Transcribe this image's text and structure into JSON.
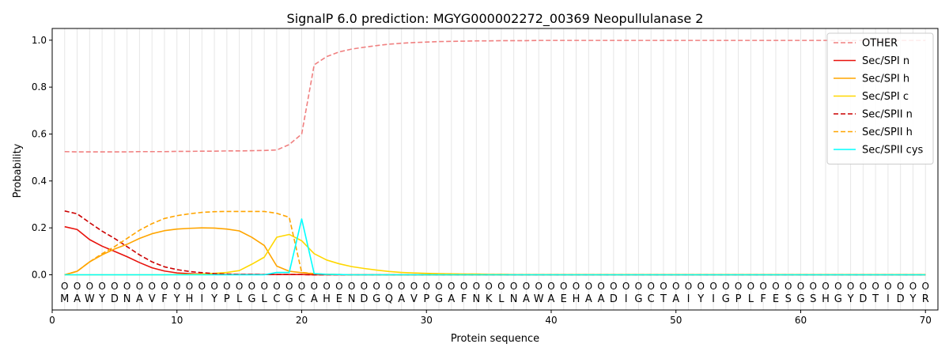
{
  "chart_data": {
    "type": "line",
    "title": "SignalP 6.0 prediction: MGYG000002272_00369 Neopullulanase 2",
    "xlabel": "Protein sequence",
    "ylabel": "Probability",
    "xlim": [
      0,
      71
    ],
    "ylim": [
      -0.15,
      1.05
    ],
    "grid": "vertical lines at each residue",
    "legend_position": "top-right",
    "x_ticks": [
      0,
      10,
      20,
      30,
      40,
      50,
      60,
      70
    ],
    "y_ticks": [
      0.0,
      0.2,
      0.4,
      0.6,
      0.8,
      1.0
    ],
    "x_tick_labels": [
      "0",
      "10",
      "20",
      "30",
      "40",
      "50",
      "60",
      "70"
    ],
    "y_tick_labels": [
      "0.0",
      "0.2",
      "0.4",
      "0.6",
      "0.8",
      "1.0"
    ],
    "sequence": [
      "M",
      "A",
      "W",
      "Y",
      "D",
      "N",
      "A",
      "V",
      "F",
      "Y",
      "H",
      "I",
      "Y",
      "P",
      "L",
      "G",
      "L",
      "C",
      "G",
      "C",
      "A",
      "H",
      "E",
      "N",
      "D",
      "G",
      "Q",
      "A",
      "V",
      "P",
      "G",
      "A",
      "F",
      "N",
      "K",
      "L",
      "N",
      "A",
      "W",
      "A",
      "E",
      "H",
      "A",
      "A",
      "D",
      "I",
      "G",
      "C",
      "T",
      "A",
      "I",
      "Y",
      "I",
      "G",
      "P",
      "L",
      "F",
      "E",
      "S",
      "G",
      "S",
      "H",
      "G",
      "Y",
      "D",
      "T",
      "I",
      "D",
      "Y",
      "R"
    ],
    "predicted_labels": [
      "O",
      "O",
      "O",
      "O",
      "O",
      "O",
      "O",
      "O",
      "O",
      "O",
      "O",
      "O",
      "O",
      "O",
      "O",
      "O",
      "O",
      "O",
      "O",
      "O",
      "O",
      "O",
      "O",
      "O",
      "O",
      "O",
      "O",
      "O",
      "O",
      "O",
      "O",
      "O",
      "O",
      "O",
      "O",
      "O",
      "O",
      "O",
      "O",
      "O",
      "O",
      "O",
      "O",
      "O",
      "O",
      "O",
      "O",
      "O",
      "O",
      "O",
      "O",
      "O",
      "O",
      "O",
      "O",
      "O",
      "O",
      "O",
      "O",
      "O",
      "O",
      "O",
      "O",
      "O",
      "O",
      "O",
      "O",
      "O",
      "O",
      "O"
    ],
    "x": [
      1,
      2,
      3,
      4,
      5,
      6,
      7,
      8,
      9,
      10,
      11,
      12,
      13,
      14,
      15,
      16,
      17,
      18,
      19,
      20,
      21,
      22,
      23,
      24,
      25,
      26,
      27,
      28,
      29,
      30,
      31,
      32,
      33,
      34,
      35,
      36,
      37,
      38,
      39,
      40,
      41,
      42,
      43,
      44,
      45,
      46,
      47,
      48,
      49,
      50,
      51,
      52,
      53,
      54,
      55,
      56,
      57,
      58,
      59,
      60,
      61,
      62,
      63,
      64,
      65,
      66,
      67,
      68,
      69,
      70
    ],
    "series": [
      {
        "name": "OTHER",
        "color": "#f08080",
        "dash": "dashed",
        "values": [
          0.525,
          0.524,
          0.524,
          0.524,
          0.524,
          0.524,
          0.525,
          0.525,
          0.525,
          0.526,
          0.526,
          0.527,
          0.527,
          0.528,
          0.528,
          0.529,
          0.53,
          0.532,
          0.555,
          0.6,
          0.895,
          0.93,
          0.95,
          0.962,
          0.97,
          0.977,
          0.983,
          0.987,
          0.99,
          0.992,
          0.994,
          0.995,
          0.996,
          0.997,
          0.997,
          0.998,
          0.998,
          0.998,
          0.999,
          0.999,
          0.999,
          0.999,
          0.999,
          0.999,
          0.999,
          0.999,
          0.999,
          0.999,
          0.999,
          0.999,
          0.999,
          0.999,
          0.999,
          0.999,
          0.999,
          0.999,
          0.999,
          0.999,
          0.999,
          0.999,
          0.999,
          0.999,
          0.999,
          0.999,
          0.999,
          0.999,
          0.999,
          0.999,
          0.999,
          0.999
        ]
      },
      {
        "name": "Sec/SPI n",
        "color": "#e8120c",
        "dash": "solid",
        "values": [
          0.205,
          0.193,
          0.15,
          0.122,
          0.1,
          0.077,
          0.052,
          0.03,
          0.016,
          0.008,
          0.005,
          0.003,
          0.002,
          0.001,
          0.001,
          0.001,
          0.001,
          0.001,
          0.001,
          0.001,
          0.0,
          0.0,
          0.0,
          0.0,
          0.0,
          0.0,
          0.0,
          0.0,
          0.0,
          0.0,
          0.0,
          0.0,
          0.0,
          0.0,
          0.0,
          0.0,
          0.0,
          0.0,
          0.0,
          0.0,
          0.0,
          0.0,
          0.0,
          0.0,
          0.0,
          0.0,
          0.0,
          0.0,
          0.0,
          0.0,
          0.0,
          0.0,
          0.0,
          0.0,
          0.0,
          0.0,
          0.0,
          0.0,
          0.0,
          0.0,
          0.0,
          0.0,
          0.0,
          0.0,
          0.0,
          0.0,
          0.0,
          0.0,
          0.0,
          0.0
        ]
      },
      {
        "name": "Sec/SPI h",
        "color": "#ffa500",
        "dash": "solid",
        "values": [
          0.0,
          0.015,
          0.055,
          0.085,
          0.11,
          0.13,
          0.155,
          0.175,
          0.188,
          0.195,
          0.198,
          0.2,
          0.199,
          0.195,
          0.187,
          0.16,
          0.125,
          0.037,
          0.015,
          0.009,
          0.004,
          0.002,
          0.001,
          0.0,
          0.0,
          0.0,
          0.0,
          0.0,
          0.0,
          0.0,
          0.0,
          0.0,
          0.0,
          0.0,
          0.0,
          0.0,
          0.0,
          0.0,
          0.0,
          0.0,
          0.0,
          0.0,
          0.0,
          0.0,
          0.0,
          0.0,
          0.0,
          0.0,
          0.0,
          0.0,
          0.0,
          0.0,
          0.0,
          0.0,
          0.0,
          0.0,
          0.0,
          0.0,
          0.0,
          0.0,
          0.0,
          0.0,
          0.0,
          0.0,
          0.0,
          0.0,
          0.0,
          0.0,
          0.0,
          0.0
        ]
      },
      {
        "name": "Sec/SPI c",
        "color": "#ffd700",
        "dash": "solid",
        "values": [
          0.0,
          0.0,
          0.0,
          0.0,
          0.0,
          0.0,
          0.0,
          0.0,
          0.0,
          0.001,
          0.002,
          0.003,
          0.006,
          0.01,
          0.018,
          0.045,
          0.075,
          0.16,
          0.172,
          0.145,
          0.09,
          0.063,
          0.047,
          0.035,
          0.027,
          0.02,
          0.014,
          0.01,
          0.008,
          0.006,
          0.005,
          0.004,
          0.003,
          0.003,
          0.002,
          0.002,
          0.001,
          0.001,
          0.001,
          0.001,
          0.001,
          0.001,
          0.001,
          0.001,
          0.001,
          0.001,
          0.001,
          0.001,
          0.001,
          0.001,
          0.001,
          0.001,
          0.001,
          0.001,
          0.001,
          0.001,
          0.001,
          0.001,
          0.001,
          0.001,
          0.001,
          0.001,
          0.001,
          0.001,
          0.001,
          0.001,
          0.001,
          0.001,
          0.001,
          0.001
        ]
      },
      {
        "name": "Sec/SPII n",
        "color": "#cc0000",
        "dash": "dashed",
        "values": [
          0.272,
          0.26,
          0.222,
          0.186,
          0.155,
          0.12,
          0.085,
          0.055,
          0.034,
          0.022,
          0.014,
          0.009,
          0.005,
          0.003,
          0.002,
          0.002,
          0.001,
          0.001,
          0.001,
          0.001,
          0.0,
          0.0,
          0.0,
          0.0,
          0.0,
          0.0,
          0.0,
          0.0,
          0.0,
          0.0,
          0.0,
          0.0,
          0.0,
          0.0,
          0.0,
          0.0,
          0.0,
          0.0,
          0.0,
          0.0,
          0.0,
          0.0,
          0.0,
          0.0,
          0.0,
          0.0,
          0.0,
          0.0,
          0.0,
          0.0,
          0.0,
          0.0,
          0.0,
          0.0,
          0.0,
          0.0,
          0.0,
          0.0,
          0.0,
          0.0,
          0.0,
          0.0,
          0.0,
          0.0,
          0.0,
          0.0,
          0.0,
          0.0,
          0.0,
          0.0
        ]
      },
      {
        "name": "Sec/SPII h",
        "color": "#ffa500",
        "dash": "dashed",
        "values": [
          0.0,
          0.015,
          0.055,
          0.09,
          0.12,
          0.155,
          0.19,
          0.218,
          0.24,
          0.252,
          0.26,
          0.266,
          0.269,
          0.27,
          0.27,
          0.27,
          0.27,
          0.262,
          0.245,
          0.01,
          0.005,
          0.002,
          0.001,
          0.0,
          0.0,
          0.0,
          0.0,
          0.0,
          0.0,
          0.0,
          0.0,
          0.0,
          0.0,
          0.0,
          0.0,
          0.0,
          0.0,
          0.0,
          0.0,
          0.0,
          0.0,
          0.0,
          0.0,
          0.0,
          0.0,
          0.0,
          0.0,
          0.0,
          0.0,
          0.0,
          0.0,
          0.0,
          0.0,
          0.0,
          0.0,
          0.0,
          0.0,
          0.0,
          0.0,
          0.0,
          0.0,
          0.0,
          0.0,
          0.0,
          0.0,
          0.0,
          0.0,
          0.0,
          0.0,
          0.0
        ]
      },
      {
        "name": "Sec/SPII cys",
        "color": "#00ffff",
        "dash": "solid",
        "values": [
          0.0,
          0.0,
          0.0,
          0.0,
          0.0,
          0.0,
          0.0,
          0.0,
          0.0,
          0.0,
          0.0,
          0.0,
          0.0,
          0.0,
          0.0,
          0.0,
          0.0,
          0.01,
          0.01,
          0.238,
          0.005,
          0.002,
          0.001,
          0.0,
          0.0,
          0.0,
          0.0,
          0.0,
          0.0,
          0.0,
          0.0,
          0.0,
          0.0,
          0.0,
          0.0,
          0.0,
          0.0,
          0.0,
          0.0,
          0.0,
          0.0,
          0.0,
          0.0,
          0.0,
          0.0,
          0.0,
          0.0,
          0.0,
          0.0,
          0.0,
          0.0,
          0.0,
          0.0,
          0.0,
          0.0,
          0.0,
          0.0,
          0.0,
          0.0,
          0.0,
          0.0,
          0.0,
          0.0,
          0.0,
          0.0,
          0.0,
          0.0,
          0.0,
          0.0,
          0.0
        ]
      }
    ]
  }
}
